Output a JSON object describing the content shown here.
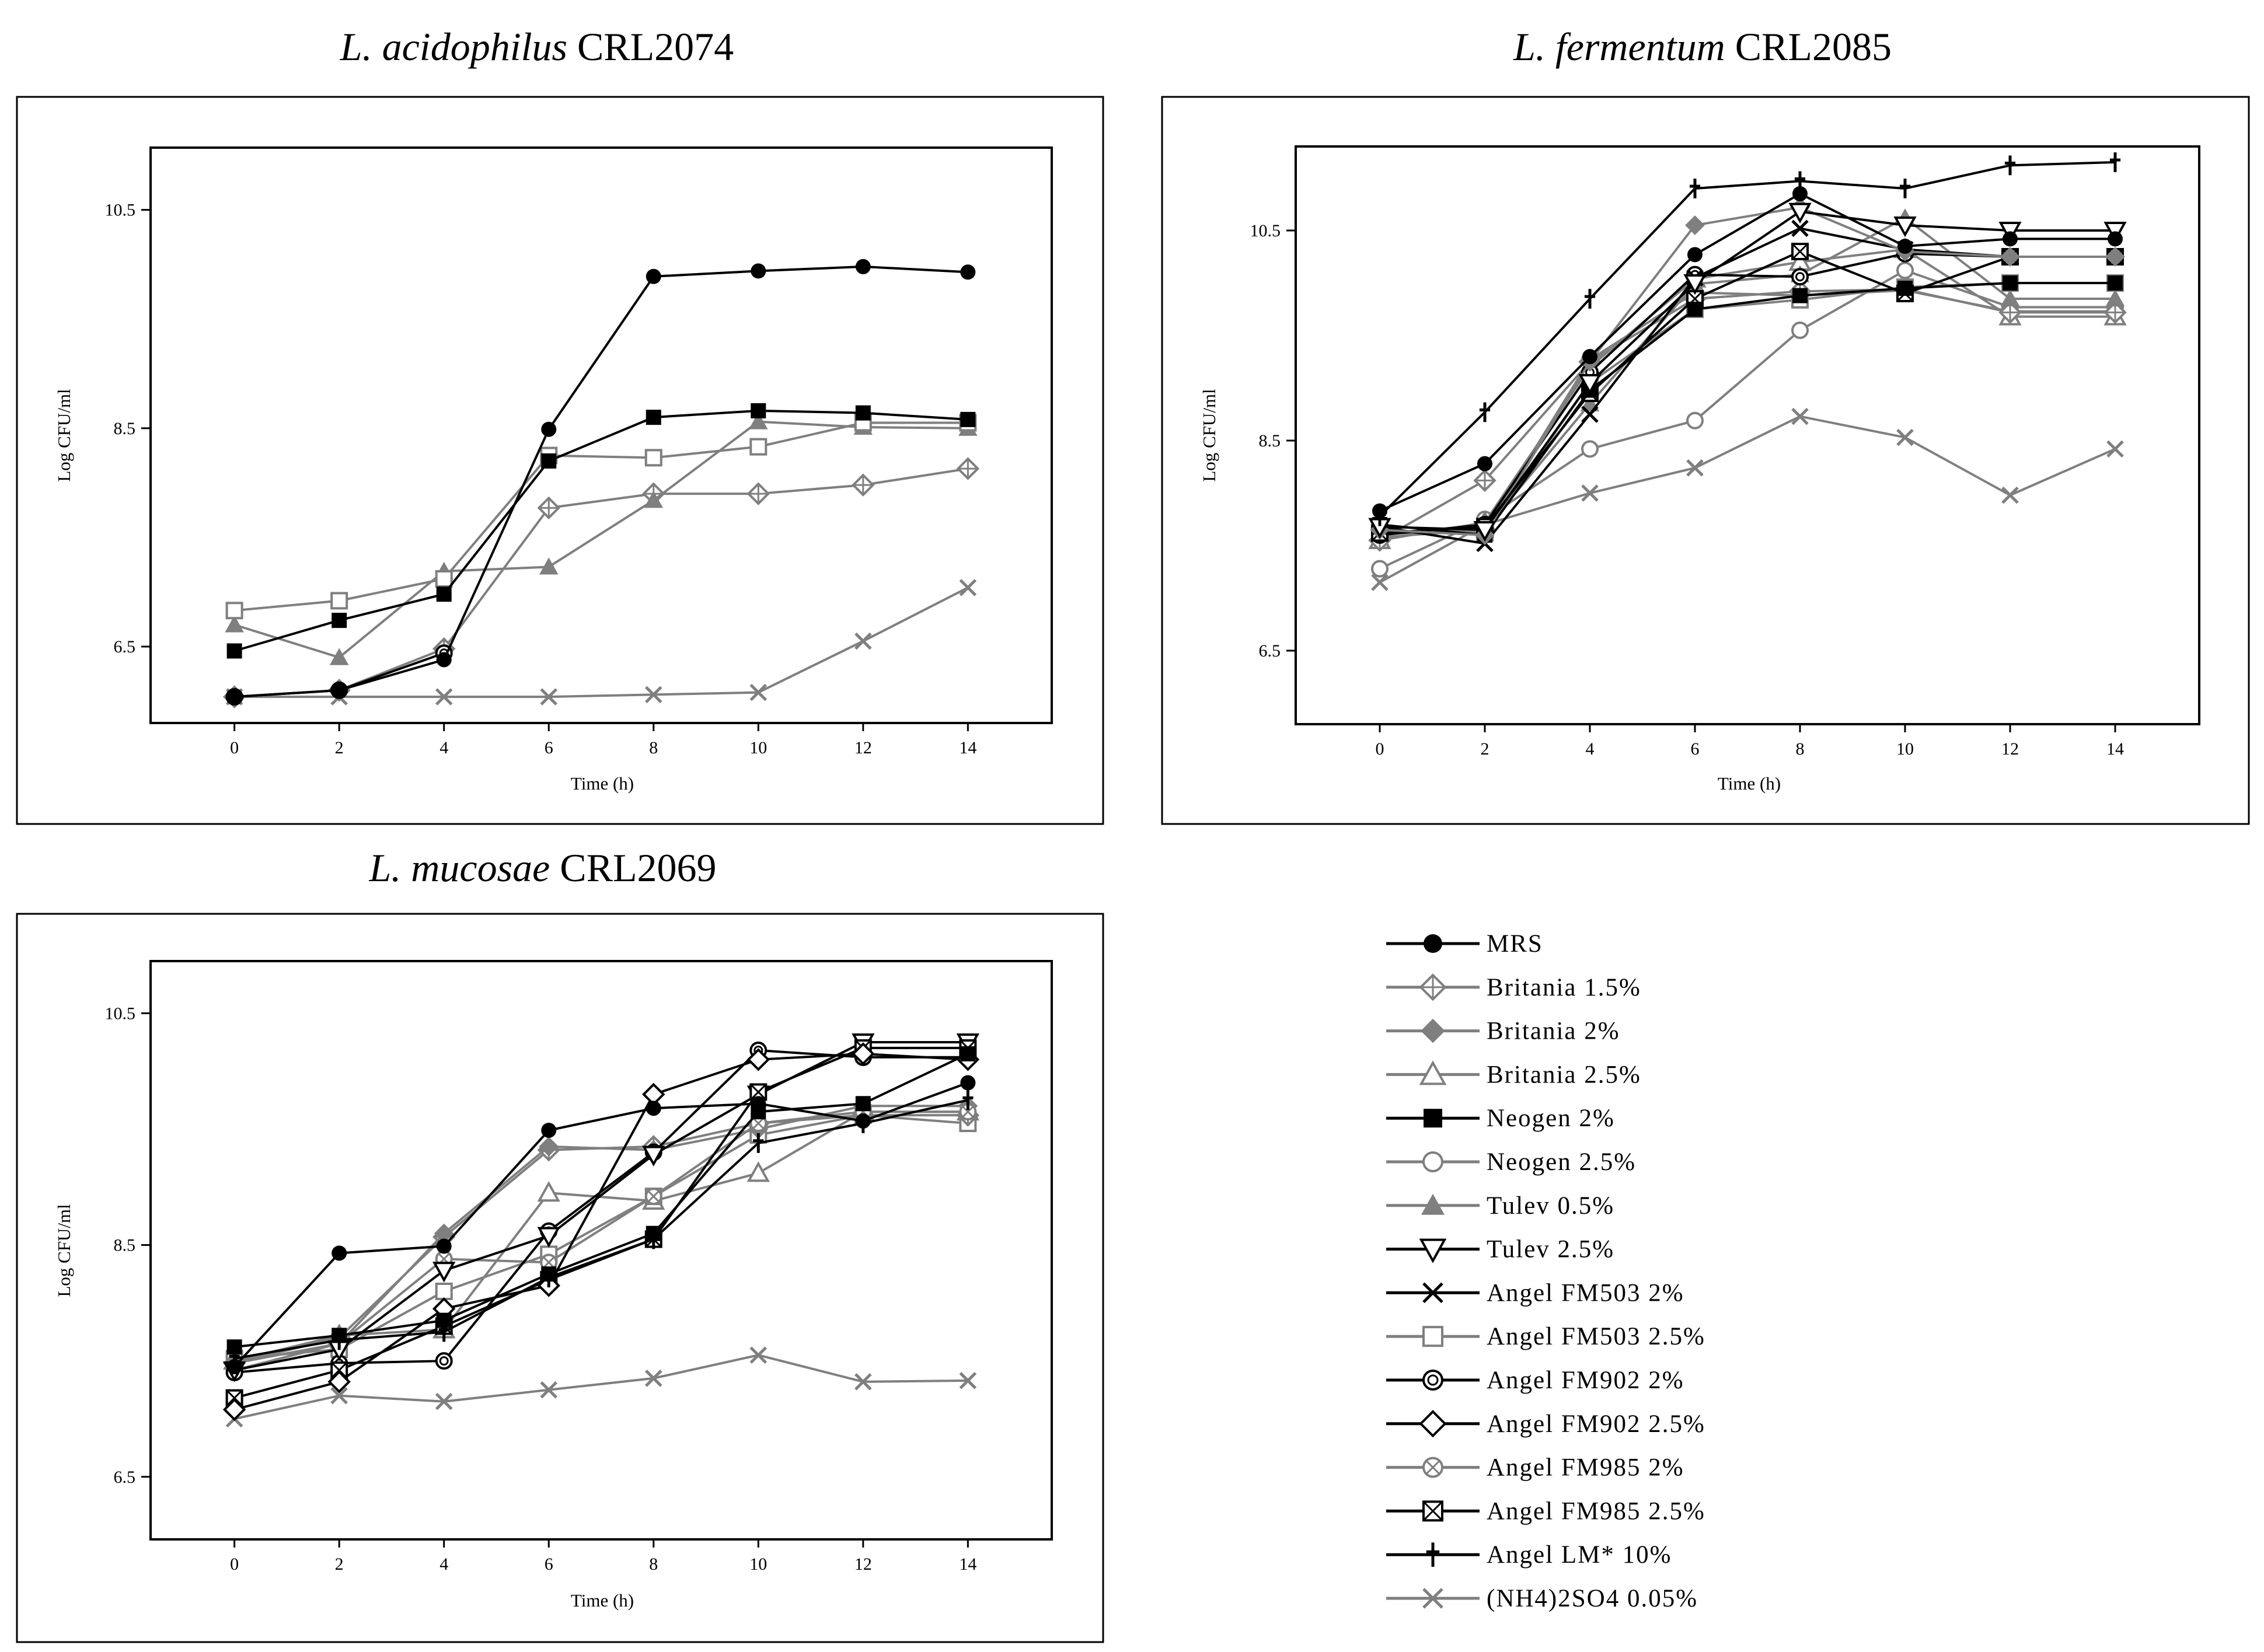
{
  "legend": [
    {
      "label": "MRS",
      "marker": "filled-circle",
      "color": "#000000"
    },
    {
      "label": "Britania 1.5%",
      "marker": "crossed-diamond",
      "color": "#7f7f7f"
    },
    {
      "label": "Britania 2%",
      "marker": "filled-diamond",
      "color": "#7f7f7f"
    },
    {
      "label": "Britania 2.5%",
      "marker": "open-triangle",
      "color": "#7f7f7f"
    },
    {
      "label": "Neogen 2%",
      "marker": "filled-square",
      "color": "#000000"
    },
    {
      "label": "Neogen 2.5%",
      "marker": "open-circle",
      "color": "#7f7f7f"
    },
    {
      "label": "Tulev 0.5%",
      "marker": "filled-triangle",
      "color": "#7f7f7f"
    },
    {
      "label": "Tulev 2.5%",
      "marker": "open-triangle-down",
      "color": "#000000"
    },
    {
      "label": "Angel FM503 2%",
      "marker": "x-cross",
      "color": "#000000"
    },
    {
      "label": "Angel FM503 2.5%",
      "marker": "open-square",
      "color": "#7f7f7f"
    },
    {
      "label": "Angel FM902 2%",
      "marker": "dot-circle",
      "color": "#000000"
    },
    {
      "label": "Angel FM902 2.5%",
      "marker": "open-diamond",
      "color": "#000000"
    },
    {
      "label": "Angel FM985 2%",
      "marker": "crossed-circle",
      "color": "#7f7f7f"
    },
    {
      "label": "Angel FM985 2.5%",
      "marker": "crossed-square",
      "color": "#000000"
    },
    {
      "label": "Angel LM* 10%",
      "marker": "dagger",
      "color": "#000000"
    },
    {
      "label": "(NH4)2SO4 0.05%",
      "marker": "x-cross",
      "color": "#7f7f7f"
    }
  ],
  "chart_data": [
    {
      "type": "line",
      "title": "L. acidophilus CRL2074",
      "title_italic": "L. acidophilus",
      "title_strain": " CRL2074",
      "xlabel": "Time (h)",
      "ylabel": "Log CFU/ml",
      "x": [
        0,
        2,
        4,
        6,
        8,
        10,
        12,
        14
      ],
      "xlim": [
        -1.6,
        15.6
      ],
      "ylim": [
        5.8,
        11.07
      ],
      "yticks": [
        "6.5",
        "8.5",
        "10.5"
      ],
      "ytick_values": [
        6.5,
        8.5,
        10.5
      ],
      "series": [
        {
          "name": "(NH4)2SO4 0.05%",
          "x": [
            0,
            2,
            4,
            6,
            8,
            10,
            12,
            14
          ],
          "values": [
            6.04,
            6.04,
            6.04,
            6.04,
            6.06,
            6.08,
            6.55,
            7.04
          ]
        },
        {
          "name": "Britania 1.5%",
          "x": [
            0,
            2,
            4,
            6,
            8,
            10,
            12,
            14
          ],
          "values": [
            6.04,
            6.1,
            6.48,
            7.77,
            7.9,
            7.9,
            7.98,
            8.13
          ]
        },
        {
          "name": "Tulev 0.5%",
          "x": [
            0,
            2,
            4,
            6,
            8,
            10,
            12,
            14
          ],
          "values": [
            6.7,
            6.4,
            7.19,
            7.23,
            7.84,
            8.56,
            8.51,
            8.5
          ]
        },
        {
          "name": "Angel FM902 2%",
          "x": [
            0,
            2,
            4
          ],
          "values": [
            6.04,
            6.1,
            6.44
          ]
        },
        {
          "name": "Angel FM503 2.5%",
          "x": [
            0,
            2,
            4,
            6,
            8,
            10,
            12,
            14
          ],
          "values": [
            6.83,
            6.92,
            7.12,
            8.25,
            8.23,
            8.33,
            8.55,
            8.55
          ]
        },
        {
          "name": "Neogen 2%",
          "x": [
            0,
            2,
            4,
            6,
            8,
            10,
            12,
            14
          ],
          "values": [
            6.46,
            6.74,
            6.98,
            8.2,
            8.6,
            8.66,
            8.64,
            8.58
          ]
        },
        {
          "name": "MRS",
          "x": [
            0,
            2,
            4,
            6,
            8,
            10,
            12,
            14
          ],
          "values": [
            6.04,
            6.1,
            6.38,
            8.49,
            9.89,
            9.94,
            9.98,
            9.93
          ]
        }
      ]
    },
    {
      "type": "line",
      "title": "L. fermentum CRL2085",
      "title_italic": "L. fermentum",
      "title_strain": " CRL2085",
      "xlabel": "Time (h)",
      "ylabel": "Log CFU/ml",
      "x": [
        0,
        2,
        4,
        6,
        8,
        10,
        12,
        14
      ],
      "xlim": [
        -1.6,
        15.6
      ],
      "ylim": [
        5.8,
        11.3
      ],
      "yticks": [
        "6.5",
        "8.5",
        "10.5"
      ],
      "ytick_values": [
        6.5,
        8.5,
        10.5
      ],
      "series": [
        {
          "name": "(NH4)2SO4 0.05%",
          "x": [
            0,
            2,
            4,
            6,
            8,
            10,
            12,
            14
          ],
          "values": [
            7.15,
            7.7,
            8.0,
            8.24,
            8.73,
            8.53,
            7.98,
            8.42
          ]
        },
        {
          "name": "Neogen 2.5%",
          "x": [
            0,
            2,
            4,
            6,
            8,
            10,
            12,
            14
          ],
          "values": [
            7.28,
            7.75,
            8.42,
            8.69,
            9.55,
            10.12,
            9.77,
            9.77
          ]
        },
        {
          "name": "Angel FM985 2%",
          "x": [
            0,
            2,
            4,
            6,
            8,
            10,
            12,
            14
          ],
          "values": [
            7.58,
            7.65,
            9.27,
            9.91,
            9.88,
            9.93,
            9.73,
            9.73
          ]
        },
        {
          "name": "Britania 2.5%",
          "x": [
            0,
            2,
            4,
            6,
            8,
            10,
            12,
            14
          ],
          "values": [
            7.55,
            7.72,
            9.2,
            10.04,
            10.2,
            10.32,
            9.68,
            9.68
          ]
        },
        {
          "name": "Britania 1.5%",
          "x": [
            0,
            2,
            4,
            6,
            8,
            10,
            12,
            14
          ],
          "values": [
            7.55,
            8.12,
            9.25,
            9.85,
            9.92,
            9.94,
            9.72,
            9.72
          ]
        },
        {
          "name": "Tulev 0.5%",
          "x": [
            0,
            2,
            4,
            6,
            8,
            10,
            12,
            14
          ],
          "values": [
            7.62,
            7.65,
            8.85,
            9.99,
            10.08,
            10.62,
            9.85,
            9.85
          ]
        },
        {
          "name": "Angel FM503 2.5%",
          "x": [
            0,
            2,
            4,
            6,
            8,
            10,
            12,
            14
          ],
          "values": [
            7.62,
            7.62,
            9.05,
            9.75,
            9.84,
            9.96,
            10.0,
            10.0
          ]
        },
        {
          "name": "Angel FM902 2%",
          "x": [
            0,
            2,
            4,
            6,
            8,
            10,
            12,
            14
          ],
          "values": [
            7.6,
            7.7,
            9.15,
            10.08,
            10.06,
            10.28,
            10.25,
            10.25
          ]
        },
        {
          "name": "Angel FM985 2.5%",
          "x": [
            0,
            2,
            4,
            6,
            8,
            10,
            12,
            14
          ],
          "values": [
            7.62,
            7.68,
            8.95,
            9.85,
            10.3,
            9.9,
            10.25,
            10.25
          ]
        },
        {
          "name": "Angel FM503 2%",
          "x": [
            0,
            2,
            4,
            6,
            8,
            10,
            12,
            14
          ],
          "values": [
            7.68,
            7.52,
            8.75,
            10.05,
            10.52,
            10.32,
            10.25,
            10.25
          ]
        },
        {
          "name": "Neogen 2%",
          "x": [
            0,
            2,
            4,
            6,
            8,
            10,
            12,
            14
          ],
          "values": [
            7.7,
            7.6,
            8.98,
            9.75,
            9.88,
            9.95,
            10.0,
            10.0
          ]
        },
        {
          "name": "Britania 2%",
          "x": [
            0,
            2,
            4,
            6,
            8,
            10,
            12,
            14
          ],
          "values": [
            7.65,
            7.6,
            9.25,
            10.55,
            10.72,
            10.3,
            10.25,
            10.25
          ]
        },
        {
          "name": "Tulev 2.5%",
          "x": [
            0,
            2,
            4,
            6,
            8,
            10,
            12,
            14
          ],
          "values": [
            7.68,
            7.65,
            9.05,
            10.0,
            10.68,
            10.55,
            10.5,
            10.5
          ]
        },
        {
          "name": "MRS",
          "x": [
            0,
            2,
            4,
            6,
            8,
            10,
            12,
            14
          ],
          "values": [
            7.83,
            8.28,
            9.3,
            10.27,
            10.85,
            10.35,
            10.42,
            10.42
          ]
        },
        {
          "name": "Angel LM* 10%",
          "x": [
            0,
            2,
            4,
            6,
            8,
            10,
            12,
            14
          ],
          "values": [
            7.78,
            8.77,
            9.85,
            10.9,
            10.97,
            10.9,
            11.12,
            11.15
          ]
        }
      ]
    },
    {
      "type": "line",
      "title": "L. mucosae CRL2069",
      "title_italic": "L. mucosae",
      "title_strain": " CRL2069",
      "xlabel": "Time (h)",
      "ylabel": "Log CFU/ml",
      "x": [
        0,
        2,
        4,
        6,
        8,
        10,
        12,
        14
      ],
      "xlim": [
        -1.6,
        15.6
      ],
      "ylim": [
        5.96,
        10.95
      ],
      "yticks": [
        "6.5",
        "8.5",
        "10.5"
      ],
      "ytick_values": [
        6.5,
        8.5,
        10.5
      ],
      "series": [
        {
          "name": "(NH4)2SO4 0.05%",
          "x": [
            0,
            2,
            4,
            6,
            8,
            10,
            12,
            14
          ],
          "values": [
            7.0,
            7.2,
            7.15,
            7.25,
            7.35,
            7.55,
            7.32,
            7.33
          ]
        },
        {
          "name": "Britania 2.5%",
          "x": [
            0,
            2,
            4,
            6,
            8,
            10,
            12,
            14
          ],
          "values": [
            7.5,
            7.72,
            7.77,
            8.95,
            8.88,
            9.12,
            9.65,
            9.65
          ]
        },
        {
          "name": "Angel FM503 2.5%",
          "x": [
            0,
            2,
            4,
            6,
            8,
            10,
            12,
            14
          ],
          "values": [
            7.52,
            7.6,
            8.1,
            8.42,
            8.92,
            9.45,
            9.62,
            9.55
          ]
        },
        {
          "name": "Britania 1.5%",
          "x": [
            0,
            2,
            4,
            6,
            8,
            10,
            12,
            14
          ],
          "values": [
            7.48,
            7.7,
            8.57,
            9.32,
            9.35,
            9.55,
            9.62,
            9.62
          ]
        },
        {
          "name": "Britania 2%",
          "x": [
            0,
            2,
            4,
            6,
            8,
            10,
            12,
            14
          ],
          "values": [
            7.48,
            7.65,
            8.6,
            9.35,
            9.32,
            9.5,
            9.7,
            9.7
          ]
        },
        {
          "name": "Angel FM985 2%",
          "x": [
            0,
            2,
            4,
            6,
            8,
            10,
            12,
            14
          ],
          "values": [
            7.42,
            7.65,
            8.38,
            8.35,
            8.92,
            9.55,
            9.65,
            9.65
          ]
        },
        {
          "name": "Angel FM902 2%",
          "x": [
            0,
            2,
            4,
            6,
            8,
            10,
            12,
            14
          ],
          "values": [
            7.4,
            7.48,
            7.5,
            8.62,
            9.3,
            10.18,
            10.12,
            10.12
          ]
        },
        {
          "name": "Tulev 2.5%",
          "x": [
            0,
            2,
            4,
            6,
            8,
            10,
            12,
            14
          ],
          "values": [
            7.42,
            7.6,
            8.28,
            8.58,
            9.28,
            9.8,
            10.25,
            10.25
          ]
        },
        {
          "name": "Angel FM985 2.5%",
          "x": [
            0,
            2,
            4,
            6,
            8,
            10,
            12,
            14
          ],
          "values": [
            7.18,
            7.42,
            7.8,
            8.2,
            8.55,
            9.82,
            10.2,
            10.2
          ]
        },
        {
          "name": "Angel FM902 2.5%",
          "x": [
            0,
            2,
            4,
            6,
            8,
            10,
            12,
            14
          ],
          "values": [
            7.08,
            7.32,
            7.95,
            8.15,
            9.8,
            10.1,
            10.15,
            10.1
          ]
        },
        {
          "name": "Neogen 2%",
          "x": [
            0,
            2,
            4,
            6,
            8,
            10,
            12,
            14
          ],
          "values": [
            7.62,
            7.72,
            7.85,
            8.25,
            8.6,
            9.65,
            9.72,
            10.15
          ]
        },
        {
          "name": "Angel LM* 10%",
          "x": [
            0,
            2,
            4,
            6,
            8,
            10,
            12,
            14
          ],
          "values": [
            7.52,
            7.68,
            7.75,
            8.22,
            8.55,
            9.38,
            9.55,
            9.75
          ]
        },
        {
          "name": "MRS",
          "x": [
            0,
            2,
            4,
            6,
            8,
            10,
            12,
            14
          ],
          "values": [
            7.45,
            8.43,
            8.49,
            9.49,
            9.68,
            9.72,
            9.57,
            9.9
          ]
        }
      ]
    }
  ]
}
